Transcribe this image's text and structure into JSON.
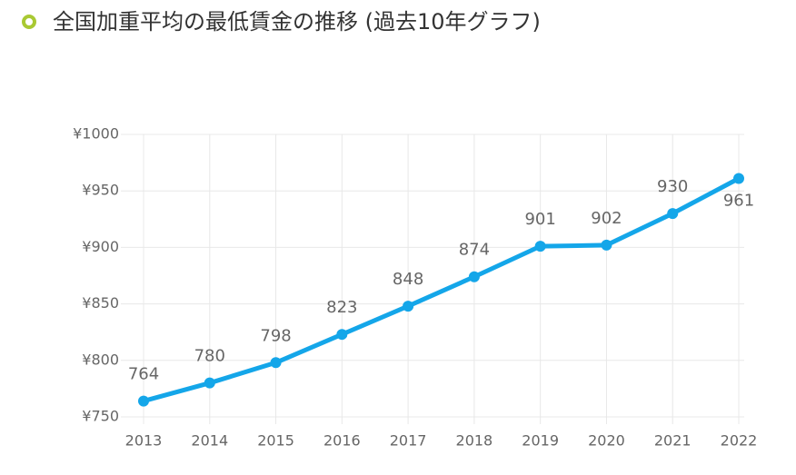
{
  "chart_data": {
    "type": "line",
    "title": "全国加重平均の最低賃金の推移 (過去10年グラフ)",
    "categories": [
      "2013",
      "2014",
      "2015",
      "2016",
      "2017",
      "2018",
      "2019",
      "2020",
      "2021",
      "2022"
    ],
    "values": [
      764,
      780,
      798,
      823,
      848,
      874,
      901,
      902,
      930,
      961
    ],
    "color": "#14a6e9",
    "ylim": [
      750,
      1000
    ],
    "yticks": [
      {
        "value": 750,
        "label": "¥750"
      },
      {
        "value": 800,
        "label": "¥800"
      },
      {
        "value": 850,
        "label": "¥850"
      },
      {
        "value": 900,
        "label": "¥900"
      },
      {
        "value": 950,
        "label": "¥950"
      },
      {
        "value": 1000,
        "label": "¥1000"
      }
    ],
    "grid": true
  }
}
